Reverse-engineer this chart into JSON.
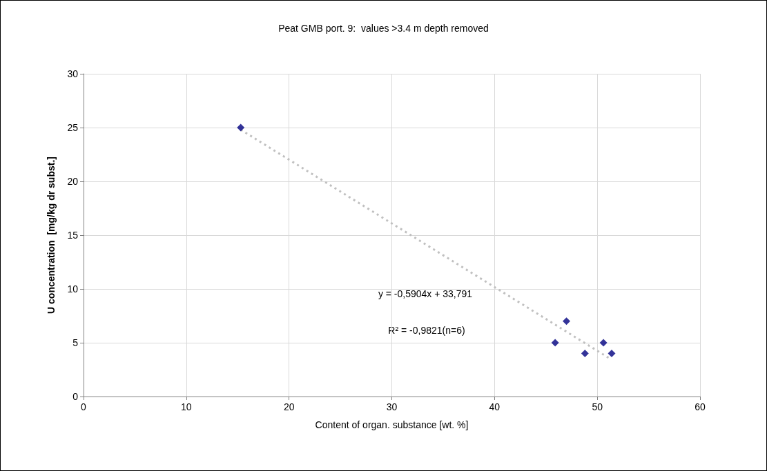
{
  "chart_data": {
    "type": "scatter",
    "title": "Peat GMB port. 9:  values >3.4 m depth removed",
    "xlabel": "Content of organ. substance [wt. %]",
    "ylabel": "U concentration  [mg/kg dr subst.]",
    "series": [
      {
        "type": "scatter",
        "color": "#000080",
        "marker": "diamond",
        "x": [
          15.3,
          45.9,
          47.0,
          48.8,
          50.6,
          51.4
        ],
        "values": [
          25,
          5,
          7,
          4,
          5,
          4
        ]
      },
      {
        "type": "line",
        "color": "#c0c0c0",
        "line_style": "dotted",
        "marker": "none",
        "x": [
          15.3,
          51.1
        ],
        "values": [
          24.8,
          3.6
        ]
      }
    ],
    "annotations": [
      "y = -0,5904x + 33,791",
      "R² = -0,9821(n=6)"
    ],
    "xlim": [
      0,
      60
    ],
    "xticks": [
      0,
      10,
      20,
      30,
      40,
      50,
      60
    ],
    "ylim": [
      0,
      30
    ],
    "yticks": [
      0,
      5,
      10,
      15,
      20,
      25,
      30
    ],
    "grid": true
  }
}
